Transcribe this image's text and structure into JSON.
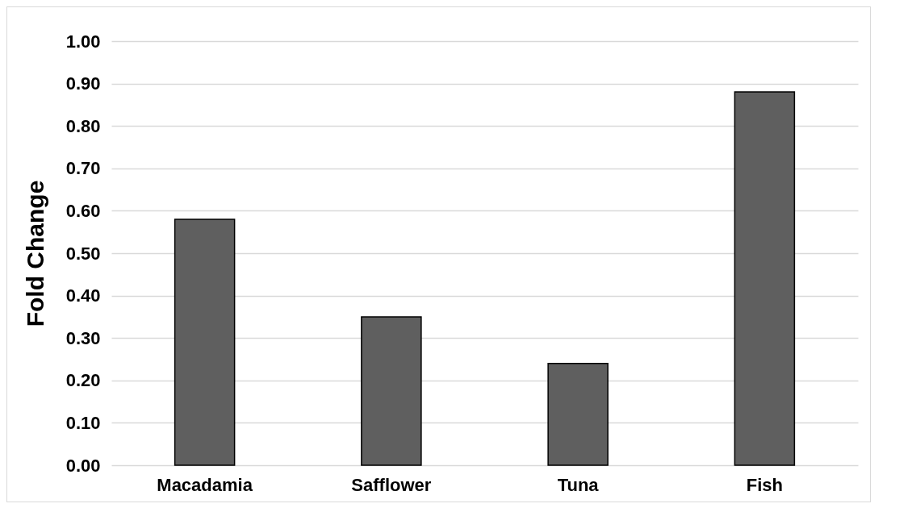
{
  "chart_data": {
    "type": "bar",
    "ylabel": "Fold Change",
    "categories": [
      "Macadamia",
      "Safflower",
      "Tuna",
      "Fish"
    ],
    "values": [
      0.58,
      0.35,
      0.24,
      0.88
    ],
    "color": "#5f5f5f",
    "ylim": [
      0,
      1
    ],
    "yticks": [
      {
        "value": 0,
        "label": "0.00"
      },
      {
        "value": 0.1,
        "label": "0.10"
      },
      {
        "value": 0.2,
        "label": "0.20"
      },
      {
        "value": 0.3,
        "label": "0.30"
      },
      {
        "value": 0.4,
        "label": "0.40"
      },
      {
        "value": 0.5,
        "label": "0.50"
      },
      {
        "value": 0.6,
        "label": "0.60"
      },
      {
        "value": 0.7,
        "label": "0.70"
      },
      {
        "value": 0.8,
        "label": "0.80"
      },
      {
        "value": 0.9,
        "label": "0.90"
      },
      {
        "value": 1,
        "label": "1.00"
      }
    ],
    "grid": "y"
  }
}
